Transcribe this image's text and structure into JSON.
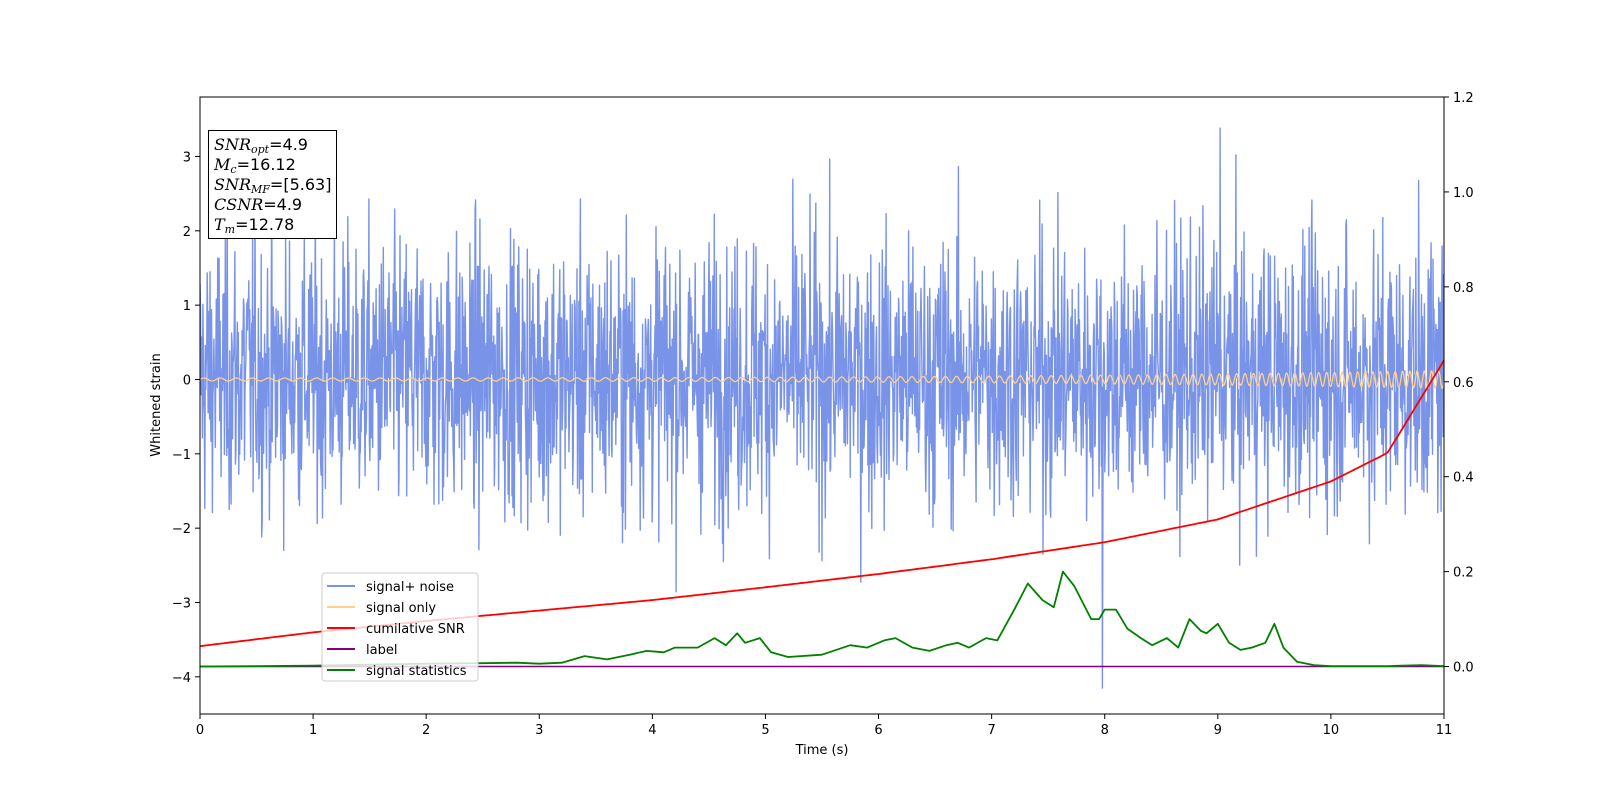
{
  "chart_data": {
    "type": "line",
    "title": "",
    "xlabel": "Time (s)",
    "ylabel": "Whitened strain",
    "xlim": [
      0,
      11
    ],
    "ylim": [
      -4.5,
      3.8
    ],
    "y2lim": [
      -0.1,
      1.2
    ],
    "xticks": [
      "0",
      "1",
      "2",
      "3",
      "4",
      "5",
      "6",
      "7",
      "8",
      "9",
      "10",
      "11"
    ],
    "yticks": [
      "−4",
      "−3",
      "−2",
      "−1",
      "0",
      "1",
      "2",
      "3"
    ],
    "y2ticks": [
      "0.0",
      "0.2",
      "0.4",
      "0.6",
      "0.8",
      "1.0",
      "1.2"
    ],
    "grid": false,
    "legend_position": "lower-left",
    "info_box": {
      "snr_opt": "=4.9",
      "mc": "=16.12",
      "snr_mf": "=[5.63]",
      "csnr": "=4.9",
      "tm": "=12.78"
    },
    "series": [
      {
        "name": "signal+ noise",
        "axis": "left",
        "color": "#7893e8",
        "kind": "noise",
        "x_range": [
          0,
          11
        ],
        "envelope_typical": [
          -1.9,
          2.3
        ],
        "peak_max": 3.38,
        "peak_max_x": 9.02,
        "peak_min": -4.15,
        "peak_min_x": 7.98
      },
      {
        "name": "signal only",
        "axis": "left",
        "color": "#ffd08a",
        "kind": "chirp",
        "x_range": [
          0,
          11
        ],
        "amplitude_start": 0.02,
        "amplitude_end": 0.12
      },
      {
        "name": "cumilative SNR",
        "axis": "right",
        "color": "#ff0000",
        "x": [
          0,
          1,
          2,
          3,
          4,
          5,
          6,
          7,
          8,
          9,
          10,
          10.5,
          11
        ],
        "y": [
          0.043,
          0.072,
          0.096,
          0.118,
          0.14,
          0.167,
          0.195,
          0.226,
          0.262,
          0.31,
          0.39,
          0.45,
          0.645
        ]
      },
      {
        "name": "label",
        "axis": "right",
        "color": "#800080",
        "x": [
          0,
          11
        ],
        "y": [
          0,
          0
        ]
      },
      {
        "name": "signal statistics",
        "axis": "right",
        "color": "#008000",
        "x": [
          0,
          0.5,
          1,
          1.5,
          2,
          2.5,
          2.8,
          3.0,
          3.2,
          3.4,
          3.6,
          3.8,
          3.95,
          4.1,
          4.2,
          4.4,
          4.55,
          4.65,
          4.75,
          4.82,
          4.95,
          5.05,
          5.2,
          5.5,
          5.75,
          5.9,
          6.05,
          6.15,
          6.3,
          6.45,
          6.6,
          6.7,
          6.8,
          6.95,
          7.05,
          7.2,
          7.32,
          7.45,
          7.55,
          7.63,
          7.73,
          7.88,
          7.95,
          8.0,
          8.1,
          8.2,
          8.32,
          8.42,
          8.55,
          8.65,
          8.75,
          8.85,
          8.9,
          9.0,
          9.1,
          9.2,
          9.3,
          9.42,
          9.5,
          9.58,
          9.7,
          9.85,
          10.0,
          10.5,
          10.8,
          11
        ],
        "y": [
          0.0,
          0.001,
          0.002,
          0.004,
          0.006,
          0.007,
          0.008,
          0.006,
          0.008,
          0.022,
          0.015,
          0.025,
          0.033,
          0.03,
          0.04,
          0.04,
          0.06,
          0.045,
          0.07,
          0.05,
          0.06,
          0.03,
          0.02,
          0.025,
          0.045,
          0.04,
          0.055,
          0.06,
          0.04,
          0.033,
          0.045,
          0.05,
          0.04,
          0.06,
          0.055,
          0.12,
          0.175,
          0.14,
          0.125,
          0.2,
          0.17,
          0.1,
          0.1,
          0.12,
          0.12,
          0.08,
          0.06,
          0.045,
          0.06,
          0.04,
          0.1,
          0.075,
          0.07,
          0.09,
          0.05,
          0.035,
          0.04,
          0.05,
          0.09,
          0.04,
          0.01,
          0.003,
          0.001,
          0.001,
          0.003,
          0.001
        ]
      }
    ]
  }
}
